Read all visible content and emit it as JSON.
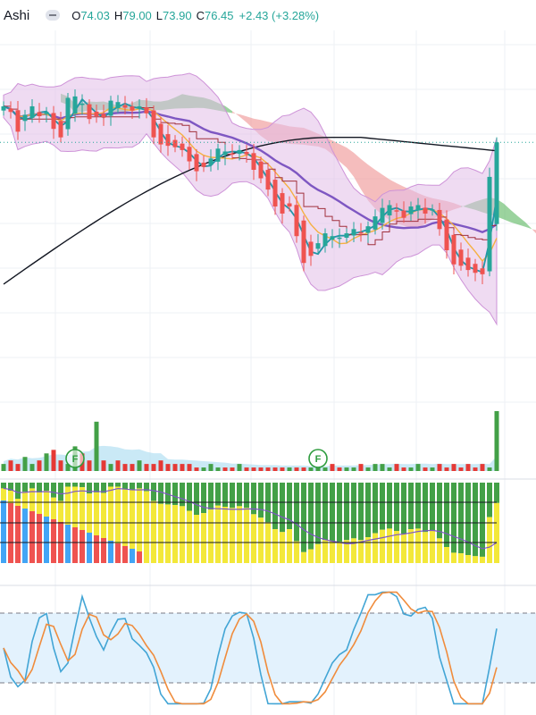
{
  "symbol": {
    "title": "Ashi"
  },
  "ohlc": {
    "o_label": "O",
    "o_value": "74.03",
    "h_label": "H",
    "h_value": "79.00",
    "l_label": "L",
    "l_value": "73.90",
    "c_label": "C",
    "c_value": "76.45",
    "change": "+2.43 (+3.28%)"
  },
  "colors": {
    "up": "#26a69a",
    "down": "#ef5350",
    "bollinger_fill": "#e1bee7",
    "cloud_bull": "#66bb6a",
    "cloud_bear": "#ef9a9a",
    "ma_purple": "#7e57c2",
    "ma_orange": "#f5b041",
    "ma_black": "#131722",
    "volume_up": "#43a047",
    "volume_down": "#e53935",
    "volume_ma_fill": "#b3e0f2",
    "stoch_k": "#42a5d5",
    "stoch_d": "#f08c3c",
    "stoch_band": "#e3f2fd"
  },
  "chart_data": {
    "type": "candlestick",
    "closes": [
      79.0,
      78.6,
      77.2,
      78.4,
      79.0,
      78.3,
      78.6,
      77.4,
      76.8,
      79.6,
      79.7,
      79.2,
      78.1,
      78.3,
      78.2,
      79.4,
      79.3,
      78.9,
      78.7,
      79.0,
      78.5,
      76.8,
      76.3,
      76.2,
      76.1,
      75.9,
      75.1,
      74.4,
      74.7,
      75.3,
      76.0,
      75.8,
      75.6,
      75.9,
      75.6,
      74.5,
      73.9,
      73.1,
      71.9,
      71.4,
      71.9,
      69.8,
      67.9,
      68.4,
      69.3,
      70.0,
      69.8,
      69.7,
      70.0,
      70.3,
      70.0,
      70.5,
      71.2,
      71.8,
      72.0,
      71.6,
      71.1,
      71.9,
      72.0,
      71.4,
      71.7,
      70.3,
      68.8,
      67.8,
      67.7,
      67.4,
      67.2,
      67.1,
      74.0,
      76.45
    ],
    "volume": [
      2,
      3,
      2,
      4,
      2,
      3,
      5,
      6,
      3,
      2,
      7,
      5,
      3,
      14,
      3,
      2,
      3,
      2,
      2,
      3,
      2,
      2,
      3,
      2,
      2,
      2,
      2,
      1,
      1,
      2,
      1,
      1,
      1,
      2,
      1,
      1,
      1,
      1,
      1,
      1,
      1,
      1,
      1,
      1,
      1,
      1,
      2,
      1,
      1,
      1,
      2,
      1,
      2,
      2,
      1,
      2,
      1,
      1,
      2,
      1,
      1,
      2,
      1,
      2,
      1,
      2,
      1,
      2,
      1,
      17
    ],
    "volume_signals": [
      "F",
      "F"
    ],
    "oscillator": {
      "upper_level": 80,
      "lower_level": 20
    },
    "ylim": [
      65,
      84
    ]
  }
}
